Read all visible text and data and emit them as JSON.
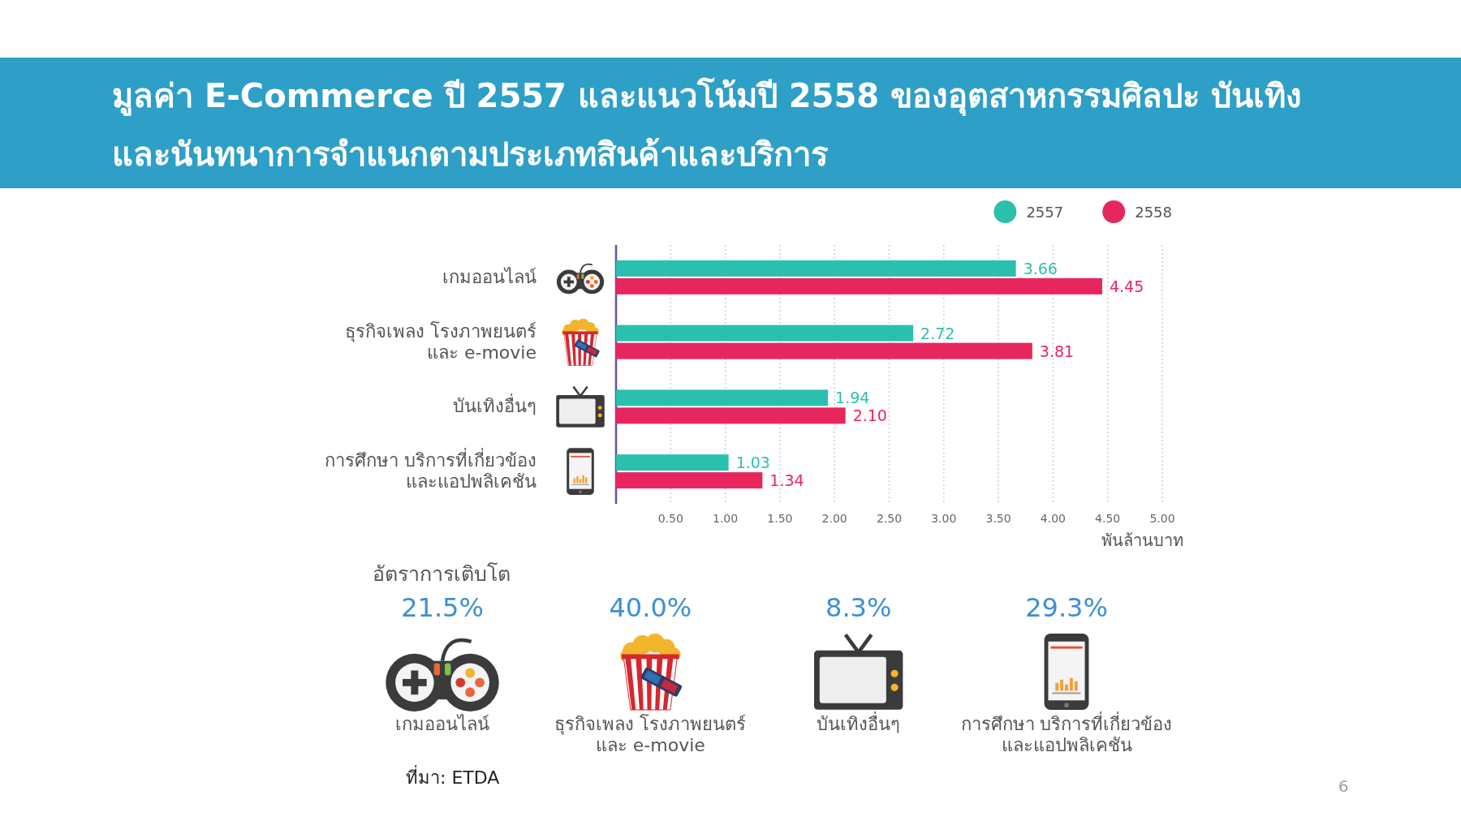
{
  "chart_data": [
    {
      "type": "bar",
      "orientation": "horizontal",
      "title": "มูลค่า E-Commerce ปี 2557 และแนวโน้มปี 2558 ของอุตสาหกรรมศิลปะ บันเทิง และนันทนาการจำแนกตามประเภทสินค้าและบริการ",
      "categories": [
        "เกมออนไลน์",
        "ธุรกิจเพลง โรงภาพยนตร์\nและ e-movie",
        "บันเทิงอื่นๆ",
        "การศึกษา บริการที่เกี่ยวข้อง\nและแอปพลิเคชัน"
      ],
      "series": [
        {
          "name": "2557",
          "color": "#2bbfae",
          "values": [
            3.66,
            2.72,
            1.94,
            1.03
          ],
          "value_labels": [
            "3.66",
            "2.72",
            "1.94",
            "1.03"
          ]
        },
        {
          "name": "2558",
          "color": "#e8265e",
          "values": [
            4.45,
            3.81,
            2.1,
            1.34
          ],
          "value_labels": [
            "4.45",
            "3.81",
            "2.10",
            "1.34"
          ]
        }
      ],
      "xlim": [
        0,
        5
      ],
      "xticks": [
        {
          "value": 0.5,
          "label": "0.50"
        },
        {
          "value": 1,
          "label": "1.00"
        },
        {
          "value": 1.5,
          "label": "1.50"
        },
        {
          "value": 2,
          "label": "2.00"
        },
        {
          "value": 2.5,
          "label": "2.50"
        },
        {
          "value": 3,
          "label": "3.00"
        },
        {
          "value": 3.5,
          "label": "3.50"
        },
        {
          "value": 4,
          "label": "4.00"
        },
        {
          "value": 4.5,
          "label": "4.50"
        },
        {
          "value": 5,
          "label": "5.00"
        }
      ],
      "xlabel": "พันล้านบาท",
      "grid": "x",
      "legend": "top right"
    },
    {
      "type": "other",
      "title": "อัตราการเติบโต",
      "categories": [
        "เกมออนไลน์",
        "ธุรกิจเพลง โรงภาพยนตร์\nและ e-movie",
        "บันเทิงอื่นๆ",
        "การศึกษา บริการที่เกี่ยวข้อง\nและแอปพลิเคชัน"
      ],
      "value_labels": [
        "21.5%",
        "40.0%",
        "8.3%",
        "29.3%"
      ],
      "annotations": [
        "ที่มา: ETDA",
        "6"
      ]
    }
  ]
}
